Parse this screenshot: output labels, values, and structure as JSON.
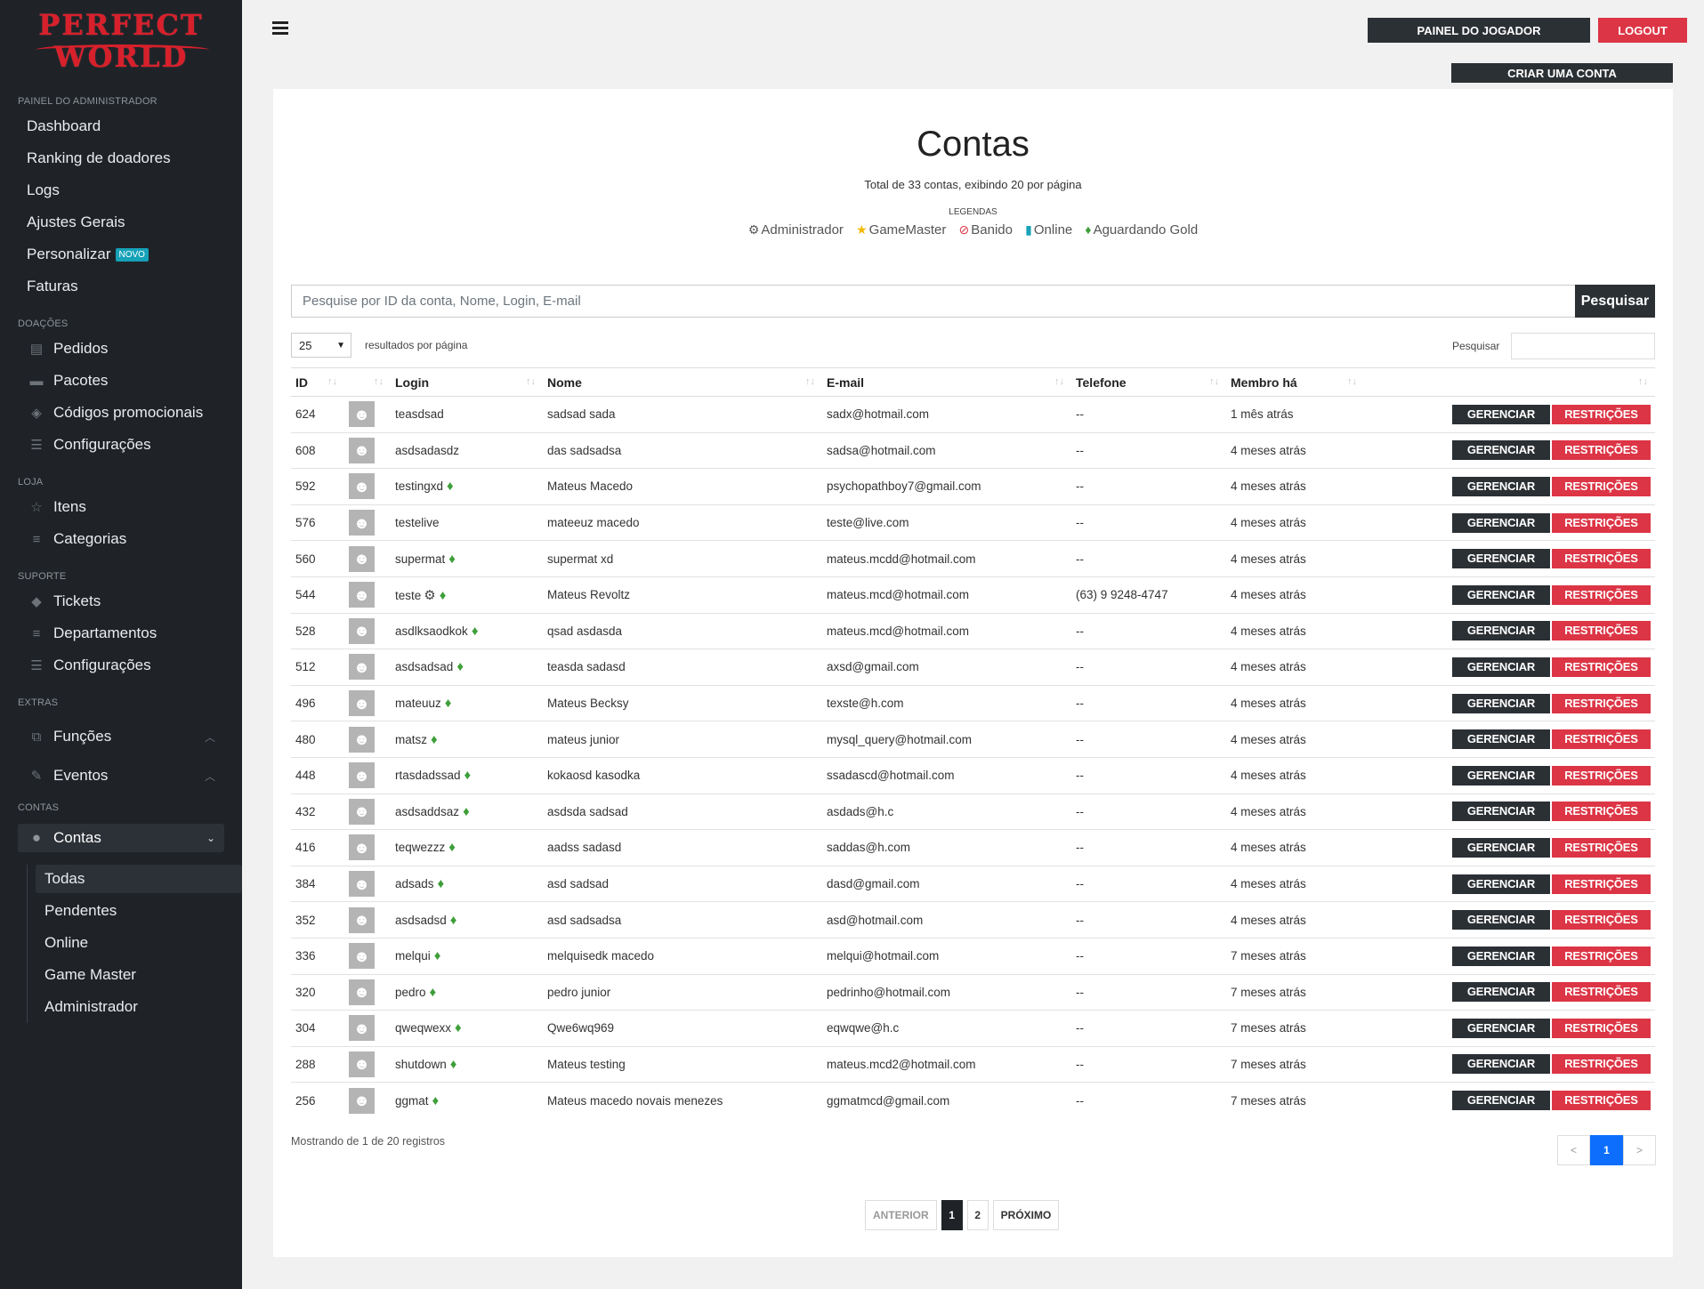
{
  "brand": {
    "line1": "PERFECT",
    "line2": "WORLD",
    "color": "#d7202b"
  },
  "sidebar": {
    "admin_section": "PAINEL DO ADMINISTRADOR",
    "admin_items": [
      {
        "label": "Dashboard"
      },
      {
        "label": "Ranking de doadores"
      },
      {
        "label": "Logs"
      },
      {
        "label": "Ajustes Gerais"
      },
      {
        "label": "Personalizar",
        "badge": "NOVO"
      },
      {
        "label": "Faturas"
      }
    ],
    "doacoes_section": "DOAÇÕES",
    "doacoes_items": [
      {
        "label": "Pedidos",
        "icon": "file-icon"
      },
      {
        "label": "Pacotes",
        "icon": "box-icon"
      },
      {
        "label": "Códigos promocionais",
        "icon": "cube-icon"
      },
      {
        "label": "Configurações",
        "icon": "sliders-icon"
      }
    ],
    "loja_section": "LOJA",
    "loja_items": [
      {
        "label": "Itens",
        "icon": "star-icon"
      },
      {
        "label": "Categorias",
        "icon": "list-icon"
      }
    ],
    "suporte_section": "SUPORTE",
    "suporte_items": [
      {
        "label": "Tickets",
        "icon": "ticket-icon"
      },
      {
        "label": "Departamentos",
        "icon": "list-icon"
      },
      {
        "label": "Configurações",
        "icon": "sliders-icon"
      }
    ],
    "extras_section": "EXTRAS",
    "extras_items": [
      {
        "label": "Funções",
        "icon": "sitemap-icon"
      },
      {
        "label": "Eventos",
        "icon": "palette-icon"
      }
    ],
    "contas_section": "CONTAS",
    "contas_group": "Contas",
    "contas_sub": [
      {
        "label": "Todas",
        "active": true
      },
      {
        "label": "Pendentes"
      },
      {
        "label": "Online"
      },
      {
        "label": "Game Master"
      },
      {
        "label": "Administrador"
      }
    ]
  },
  "topbar": {
    "player_panel": "PAINEL DO JOGADOR",
    "logout": "LOGOUT",
    "create_account": "CRIAR UMA CONTA"
  },
  "main": {
    "title": "Contas",
    "subtitle": "Total de 33 contas, exibindo 20 por página",
    "legend_title": "LEGENDAS",
    "legend": [
      {
        "icon": "gear-icon",
        "label": "Administrador"
      },
      {
        "icon": "star-icon",
        "label": "GameMaster"
      },
      {
        "icon": "ban-icon",
        "label": "Banido"
      },
      {
        "icon": "signal-icon",
        "label": "Online"
      },
      {
        "icon": "money-bag-icon",
        "label": "Aguardando Gold"
      }
    ],
    "search_placeholder": "Pesquise por ID da conta, Nome, Login, E-mail",
    "search_button": "Pesquisar",
    "page_length": "25",
    "page_length_label": "resultados por página",
    "filter_label": "Pesquisar",
    "columns": [
      "ID",
      "",
      "Login",
      "Nome",
      "E-mail",
      "Telefone",
      "Membro há",
      ""
    ],
    "action_manage": "GERENCIAR",
    "action_restrict": "RESTRIÇÕES",
    "rows": [
      {
        "id": "624",
        "login": "teasdsad",
        "gold": false,
        "admin": false,
        "nome": "sadsad sada",
        "email": "sadx@hotmail.com",
        "tel": "--",
        "membro": "1 mês atrás"
      },
      {
        "id": "608",
        "login": "asdsadasdz",
        "gold": false,
        "admin": false,
        "nome": "das sadsadsa",
        "email": "sadsa@hotmail.com",
        "tel": "--",
        "membro": "4 meses atrás"
      },
      {
        "id": "592",
        "login": "testingxd",
        "gold": true,
        "admin": false,
        "nome": "Mateus Macedo",
        "email": "psychopathboy7@gmail.com",
        "tel": "--",
        "membro": "4 meses atrás"
      },
      {
        "id": "576",
        "login": "testelive",
        "gold": false,
        "admin": false,
        "nome": "mateeuz macedo",
        "email": "teste@live.com",
        "tel": "--",
        "membro": "4 meses atrás"
      },
      {
        "id": "560",
        "login": "supermat",
        "gold": true,
        "admin": false,
        "nome": "supermat xd",
        "email": "mateus.mcdd@hotmail.com",
        "tel": "--",
        "membro": "4 meses atrás"
      },
      {
        "id": "544",
        "login": "teste",
        "gold": true,
        "admin": true,
        "nome": "Mateus Revoltz",
        "email": "mateus.mcd@hotmail.com",
        "tel": "(63) 9 9248-4747",
        "membro": "4 meses atrás"
      },
      {
        "id": "528",
        "login": "asdlksaodkok",
        "gold": true,
        "admin": false,
        "nome": "qsad asdasda",
        "email": "mateus.mcd@hotmail.com",
        "tel": "--",
        "membro": "4 meses atrás"
      },
      {
        "id": "512",
        "login": "asdsadsad",
        "gold": true,
        "admin": false,
        "nome": "teasda sadasd",
        "email": "axsd@gmail.com",
        "tel": "--",
        "membro": "4 meses atrás"
      },
      {
        "id": "496",
        "login": "mateuuz",
        "gold": true,
        "admin": false,
        "nome": "Mateus Becksy",
        "email": "texste@h.com",
        "tel": "--",
        "membro": "4 meses atrás"
      },
      {
        "id": "480",
        "login": "matsz",
        "gold": true,
        "admin": false,
        "nome": "mateus junior",
        "email": "mysql_query@hotmail.com",
        "tel": "--",
        "membro": "4 meses atrás"
      },
      {
        "id": "448",
        "login": "rtasdadssad",
        "gold": true,
        "admin": false,
        "nome": "kokaosd kasodka",
        "email": "ssadascd@hotmail.com",
        "tel": "--",
        "membro": "4 meses atrás"
      },
      {
        "id": "432",
        "login": "asdsaddsaz",
        "gold": true,
        "admin": false,
        "nome": "asdsda sadsad",
        "email": "asdads@h.c",
        "tel": "--",
        "membro": "4 meses atrás"
      },
      {
        "id": "416",
        "login": "teqwezzz",
        "gold": true,
        "admin": false,
        "nome": "aadss sadasd",
        "email": "saddas@h.com",
        "tel": "--",
        "membro": "4 meses atrás"
      },
      {
        "id": "384",
        "login": "adsads",
        "gold": true,
        "admin": false,
        "nome": "asd sadsad",
        "email": "dasd@gmail.com",
        "tel": "--",
        "membro": "4 meses atrás"
      },
      {
        "id": "352",
        "login": "asdsadsd",
        "gold": true,
        "admin": false,
        "nome": "asd sadsadsa",
        "email": "asd@hotmail.com",
        "tel": "--",
        "membro": "4 meses atrás"
      },
      {
        "id": "336",
        "login": "melqui",
        "gold": true,
        "admin": false,
        "nome": "melquisedk macedo",
        "email": "melqui@hotmail.com",
        "tel": "--",
        "membro": "7 meses atrás"
      },
      {
        "id": "320",
        "login": "pedro",
        "gold": true,
        "admin": false,
        "nome": "pedro junior",
        "email": "pedrinho@hotmail.com",
        "tel": "--",
        "membro": "7 meses atrás"
      },
      {
        "id": "304",
        "login": "qweqwexx",
        "gold": true,
        "admin": false,
        "nome": "Qwe6wq969",
        "email": "eqwqwe@h.c",
        "tel": "--",
        "membro": "7 meses atrás"
      },
      {
        "id": "288",
        "login": "shutdown",
        "gold": true,
        "admin": false,
        "nome": "Mateus testing",
        "email": "mateus.mcd2@hotmail.com",
        "tel": "--",
        "membro": "7 meses atrás"
      },
      {
        "id": "256",
        "login": "ggmat",
        "gold": true,
        "admin": false,
        "nome": "Mateus macedo novais menezes",
        "email": "ggmatmcd@gmail.com",
        "tel": "--",
        "membro": "7 meses atrás"
      }
    ],
    "info": "Mostrando de 1 de 20 registros",
    "small_pager": {
      "prev": "<",
      "current": "1",
      "next": ">"
    },
    "main_pager": {
      "prev": "ANTERIOR",
      "pages": [
        "1",
        "2"
      ],
      "next": "PRÓXIMO"
    }
  }
}
